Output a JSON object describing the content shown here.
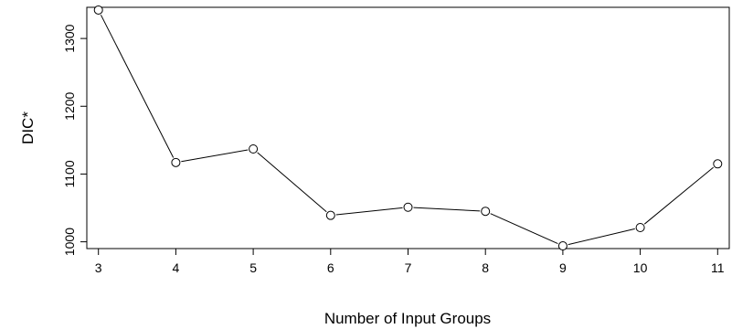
{
  "chart_data": {
    "type": "line",
    "title": "",
    "xlabel": "Number of Input Groups",
    "ylabel": "DIC*",
    "x": [
      3,
      4,
      5,
      6,
      7,
      8,
      9,
      10,
      11
    ],
    "series": [
      {
        "values": [
          1342,
          1117,
          1137,
          1039,
          1051,
          1045,
          994,
          1021,
          1115
        ]
      }
    ],
    "xticks": [
      "3",
      "4",
      "5",
      "6",
      "7",
      "8",
      "9",
      "10",
      "11"
    ],
    "yticks": [
      "1000",
      "1100",
      "1200",
      "1300"
    ],
    "xlim": [
      2.85,
      11.15
    ],
    "ylim": [
      990,
      1346
    ],
    "grid": false,
    "legend": "none",
    "colors": {
      "line": "#000000",
      "marker_fill": "#ffffff",
      "axes": "#000000"
    }
  }
}
